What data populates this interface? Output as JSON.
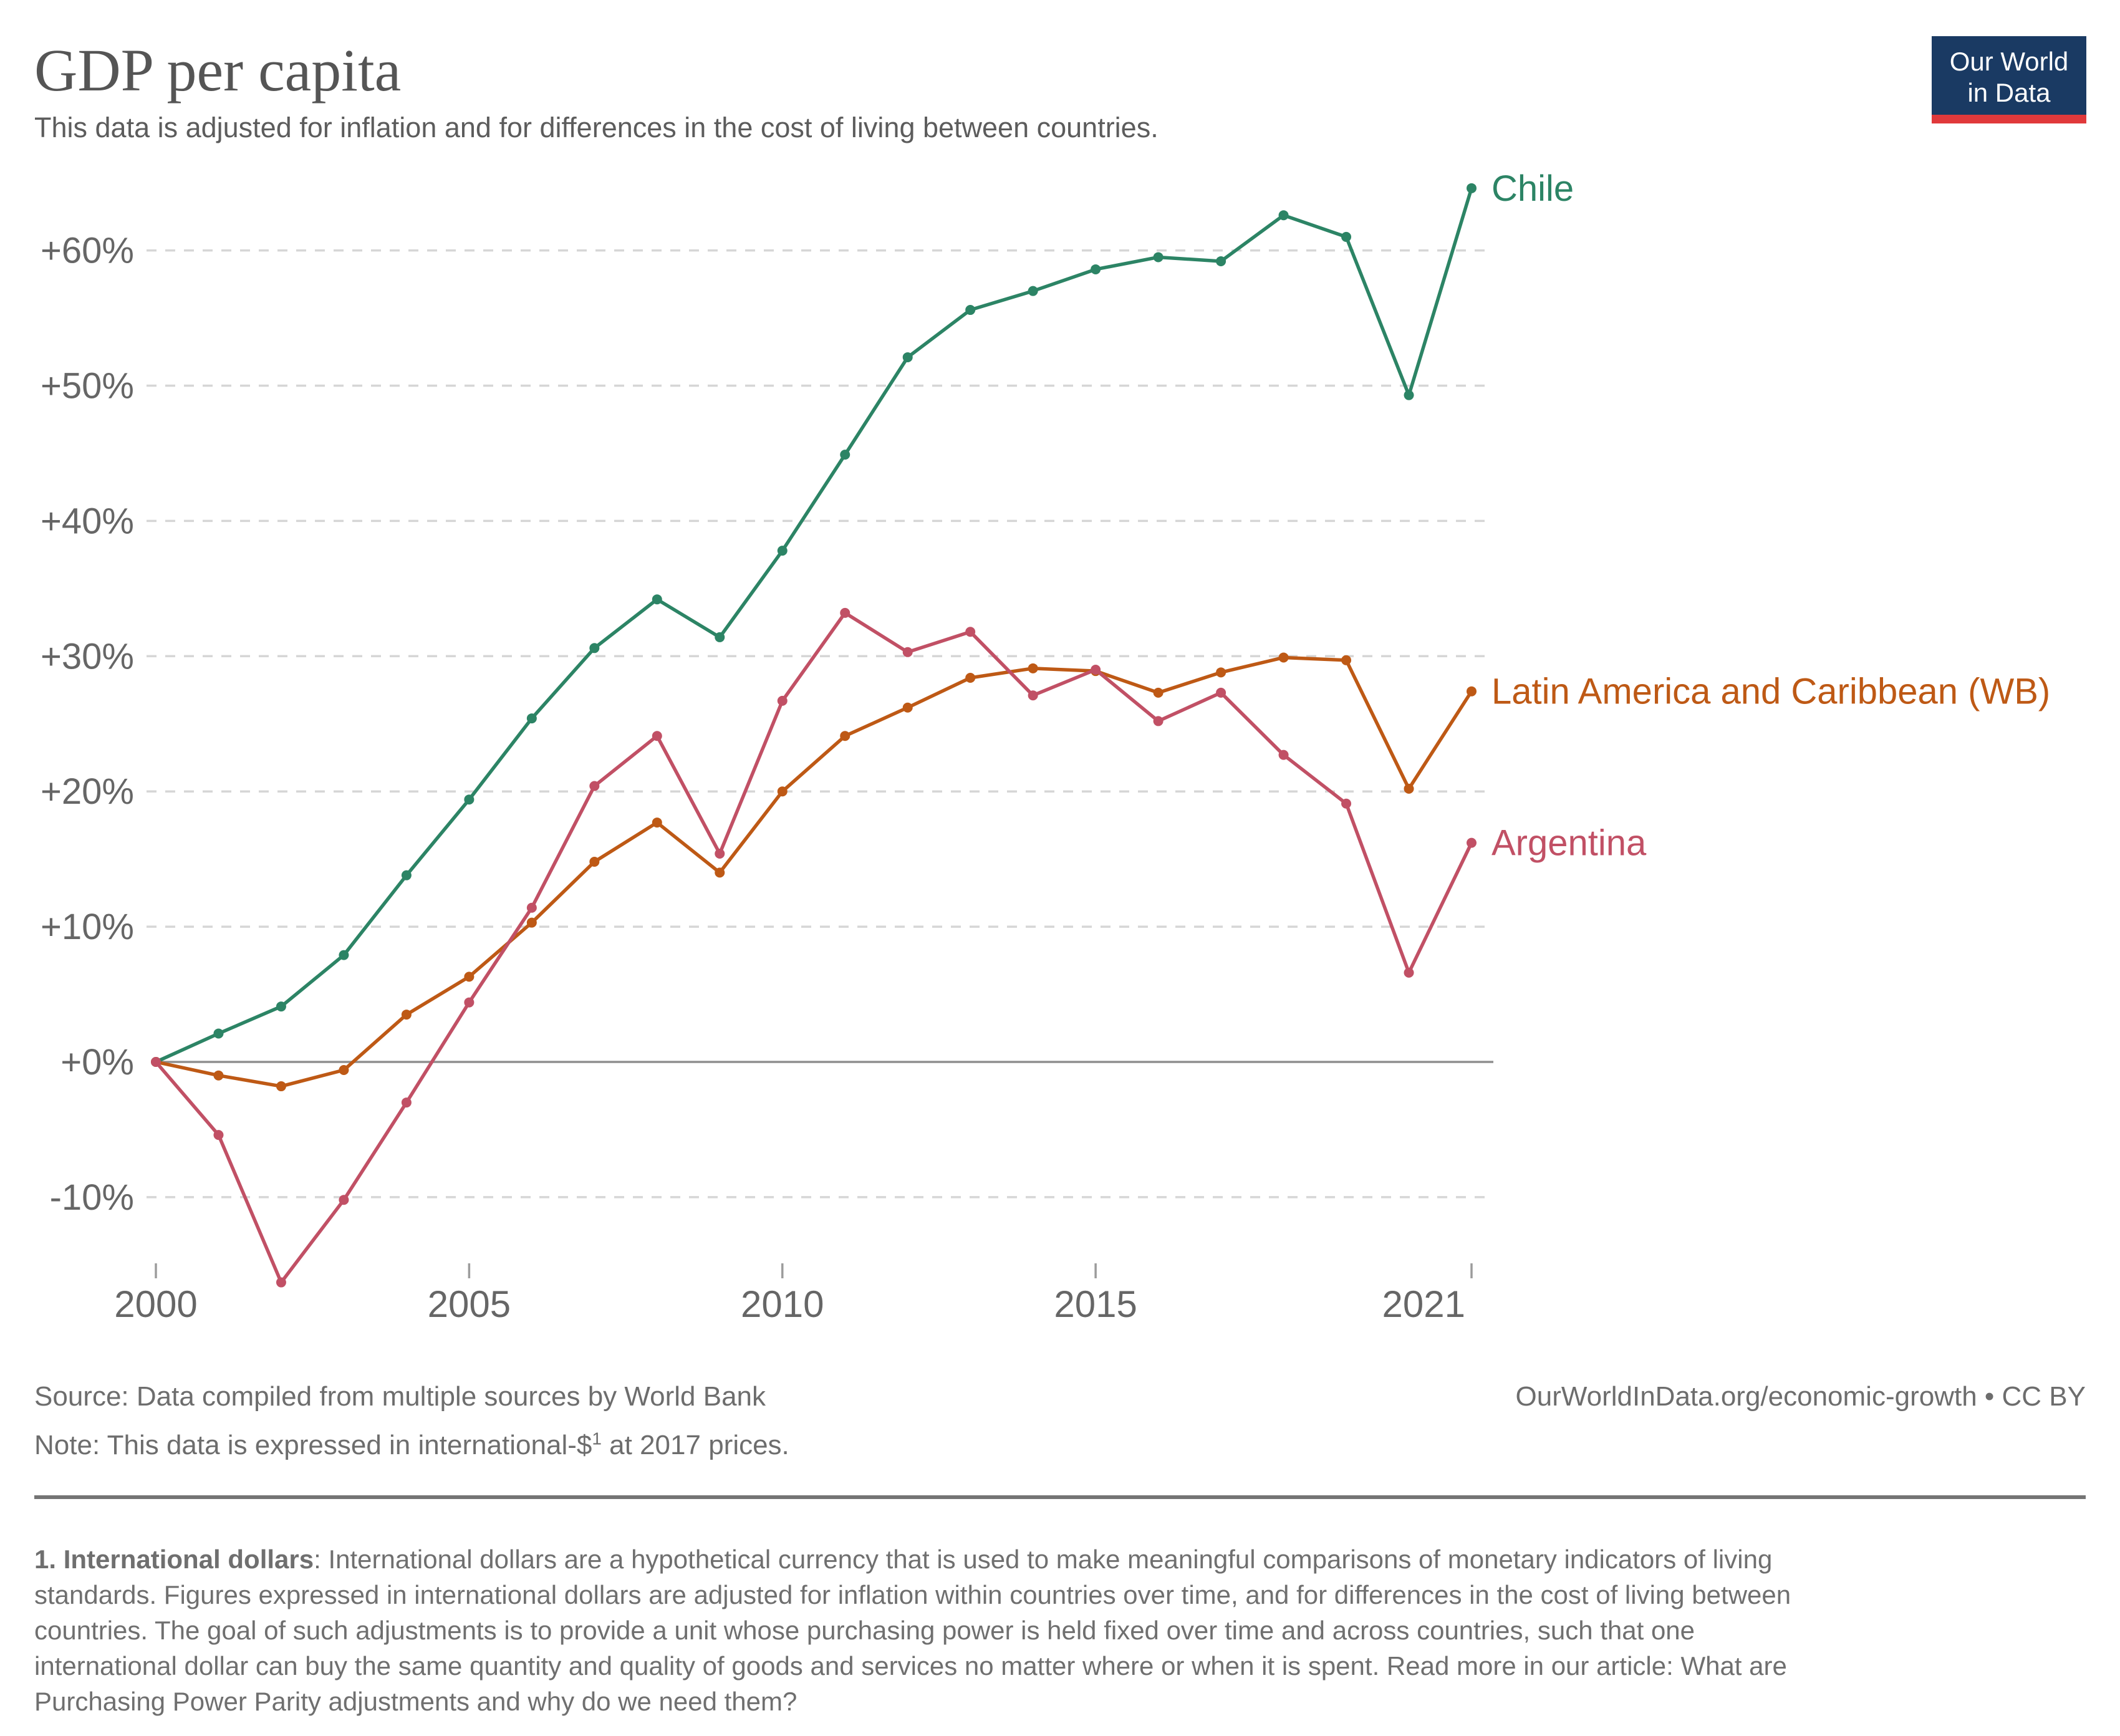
{
  "header": {
    "title": "GDP per capita",
    "subtitle": "This data is adjusted for inflation and for differences in the cost of living between countries."
  },
  "logo": {
    "line1": "Our World",
    "line2": "in Data",
    "bg_color": "#1a3a63",
    "accent_color": "#e0393b"
  },
  "chart_data": {
    "type": "line",
    "title": "GDP per capita",
    "xlabel": "",
    "ylabel": "",
    "x": [
      2000,
      2001,
      2002,
      2003,
      2004,
      2005,
      2006,
      2007,
      2008,
      2009,
      2010,
      2011,
      2012,
      2013,
      2014,
      2015,
      2016,
      2017,
      2018,
      2019,
      2020,
      2021
    ],
    "series": [
      {
        "name": "Chile",
        "color": "#2C8465",
        "values": [
          0,
          2.1,
          4.1,
          7.9,
          13.8,
          19.4,
          25.4,
          30.6,
          34.2,
          31.4,
          37.8,
          44.9,
          52.1,
          55.6,
          57.0,
          58.6,
          59.5,
          59.2,
          62.6,
          61.0,
          49.3,
          64.6
        ]
      },
      {
        "name": "Latin America and Caribbean (WB)",
        "color": "#BE5915",
        "values": [
          0,
          -1.0,
          -1.8,
          -0.6,
          3.5,
          6.3,
          10.3,
          14.8,
          17.7,
          14.0,
          20.0,
          24.1,
          26.2,
          28.4,
          29.1,
          28.9,
          27.3,
          28.8,
          29.9,
          29.7,
          20.2,
          27.4
        ]
      },
      {
        "name": "Argentina",
        "color": "#C15065",
        "values": [
          0,
          -5.4,
          -16.3,
          -10.2,
          -3.0,
          4.4,
          11.4,
          20.4,
          24.1,
          15.4,
          26.7,
          33.2,
          30.3,
          31.8,
          27.1,
          29.0,
          25.2,
          27.3,
          22.7,
          19.1,
          6.6,
          16.2
        ]
      }
    ],
    "y_ticks": [
      {
        "value": 60,
        "label": "+60%"
      },
      {
        "value": 50,
        "label": "+50%"
      },
      {
        "value": 40,
        "label": "+40%"
      },
      {
        "value": 30,
        "label": "+30%"
      },
      {
        "value": 20,
        "label": "+20%"
      },
      {
        "value": 10,
        "label": "+10%"
      },
      {
        "value": 0,
        "label": "+0%"
      },
      {
        "value": -10,
        "label": "-10%"
      }
    ],
    "x_ticks": [
      {
        "value": 2000,
        "label": "2000"
      },
      {
        "value": 2005,
        "label": "2005"
      },
      {
        "value": 2010,
        "label": "2010"
      },
      {
        "value": 2015,
        "label": "2015"
      },
      {
        "value": 2021,
        "label": "2021"
      }
    ],
    "ylim": [
      -18,
      66
    ],
    "xlim": [
      2000,
      2021
    ],
    "grid": "horizontal-dashed",
    "zero_line": true,
    "legend": "end-of-line-labels",
    "grid_color": "#d6d6d6",
    "zero_line_color": "#8f8f8f",
    "tick_color": "#9c9c9c",
    "text_color": "#666666"
  },
  "footer": {
    "source": "Source: Data compiled from multiple sources by World Bank",
    "attribution": "OurWorldInData.org/economic-growth • CC BY",
    "note_prefix": "Note: This data is expressed in international-$",
    "note_sup": "1",
    "note_suffix": " at 2017 prices."
  },
  "footnote": {
    "bold": "1. International dollars",
    "lines": [
      ": International dollars are a hypothetical currency that is used to make meaningful comparisons of monetary indicators of living",
      "standards. Figures expressed in international dollars are adjusted for inflation within countries over time, and for differences in the cost of living between",
      "countries. The goal of such adjustments is to provide a unit whose purchasing power is held fixed over time and across countries, such that one",
      "international dollar can buy the same quantity and quality of goods and services no matter where or when it is spent. Read more in our article: What are",
      "Purchasing Power Parity adjustments and why do we need them?"
    ]
  }
}
